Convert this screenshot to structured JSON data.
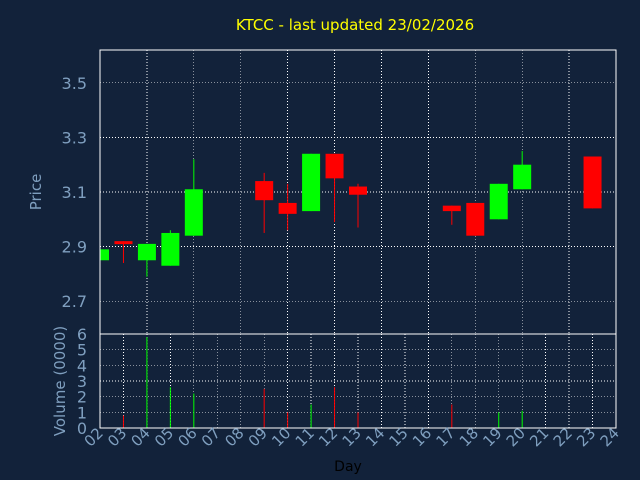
{
  "chart_data": {
    "type": "candlestick",
    "title": "KTCC - last updated 23/02/2026",
    "price_panel": {
      "ylabel": "Price",
      "ylim": [
        2.58,
        3.62
      ],
      "yticks": [
        "3.5",
        "3.3",
        "3.1",
        "2.9",
        "2.7"
      ],
      "ytick_values": [
        3.5,
        3.3,
        3.1,
        2.9,
        2.7
      ],
      "grid": true
    },
    "volume_panel": {
      "ylabel": "Volume (0000)",
      "ylim": [
        0,
        6
      ],
      "yticks": [
        "6",
        "5",
        "4",
        "3",
        "2",
        "1",
        "0"
      ],
      "ytick_values": [
        6,
        5,
        4,
        3,
        2,
        1,
        0
      ],
      "grid": true
    },
    "xlabel": "Day",
    "x_categories": [
      "02",
      "03",
      "04",
      "05",
      "06",
      "07",
      "08",
      "09",
      "10",
      "11",
      "12",
      "13",
      "14",
      "15",
      "16",
      "17",
      "18",
      "19",
      "20",
      "21",
      "22",
      "23",
      "24"
    ],
    "candles": [
      {
        "day": "02",
        "open": 2.85,
        "close": 2.89,
        "high": 2.89,
        "low": 2.85,
        "volume": 0
      },
      {
        "day": "03",
        "open": 2.92,
        "close": 2.91,
        "high": 2.92,
        "low": 2.84,
        "volume": 0.8
      },
      {
        "day": "04",
        "open": 2.85,
        "close": 2.91,
        "high": 2.91,
        "low": 2.79,
        "volume": 5.8
      },
      {
        "day": "05",
        "open": 2.83,
        "close": 2.95,
        "high": 2.96,
        "low": 2.83,
        "volume": 2.6
      },
      {
        "day": "06",
        "open": 2.94,
        "close": 3.11,
        "high": 3.22,
        "low": 2.94,
        "volume": 2.2
      },
      {
        "day": "09",
        "open": 3.14,
        "close": 3.07,
        "high": 3.17,
        "low": 2.95,
        "volume": 2.5
      },
      {
        "day": "10",
        "open": 3.06,
        "close": 3.02,
        "high": 3.13,
        "low": 2.96,
        "volume": 1.0
      },
      {
        "day": "11",
        "open": 3.03,
        "close": 3.24,
        "high": 3.24,
        "low": 3.03,
        "volume": 1.5
      },
      {
        "day": "12",
        "open": 3.24,
        "close": 3.15,
        "high": 3.24,
        "low": 2.99,
        "volume": 2.6
      },
      {
        "day": "13",
        "open": 3.12,
        "close": 3.09,
        "high": 3.13,
        "low": 2.97,
        "volume": 1.0
      },
      {
        "day": "17",
        "open": 3.05,
        "close": 3.03,
        "high": 3.05,
        "low": 2.98,
        "volume": 1.5
      },
      {
        "day": "18",
        "open": 3.06,
        "close": 2.94,
        "high": 3.06,
        "low": 2.94,
        "volume": 0
      },
      {
        "day": "19",
        "open": 3.0,
        "close": 3.13,
        "high": 3.13,
        "low": 3.0,
        "volume": 1.0
      },
      {
        "day": "20",
        "open": 3.11,
        "close": 3.2,
        "high": 3.25,
        "low": 3.11,
        "volume": 1.1
      },
      {
        "day": "23",
        "open": 3.23,
        "close": 3.04,
        "high": 3.23,
        "low": 3.04,
        "volume": 0
      }
    ],
    "colors": {
      "background": "#12223a",
      "plot_border": "#ffffff",
      "grid": "#ffffff",
      "up": "#00ff00",
      "down": "#ff0000",
      "title": "#ffff00",
      "axis_text": "#7f9fbf",
      "xlabel_text": "#000000"
    }
  }
}
